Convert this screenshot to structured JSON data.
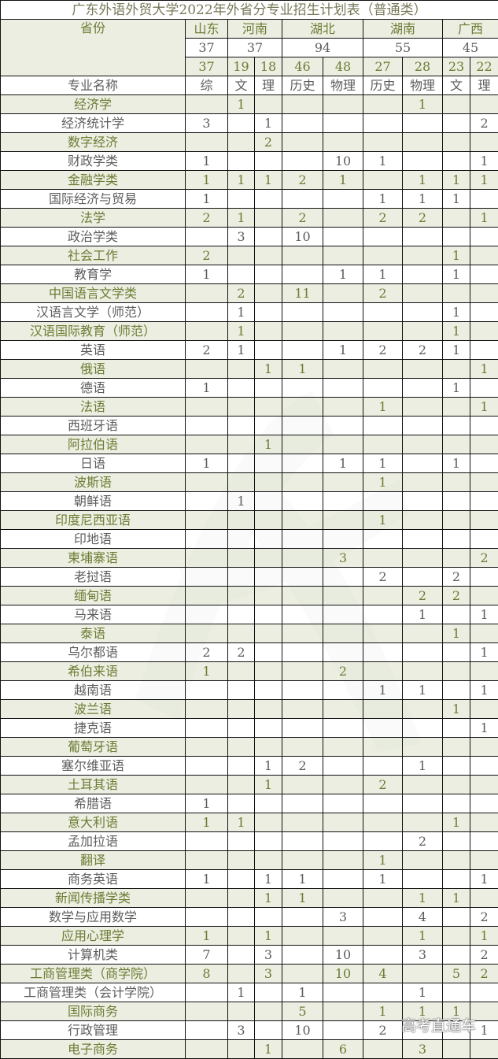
{
  "title": "广东外语外贸大学2022年外省分专业招生计划表（普通类）",
  "header": {
    "province_label": "省份",
    "major_label": "专业名称",
    "provinces": [
      {
        "name": "山东",
        "total": "37",
        "span": 1
      },
      {
        "name": "河南",
        "total": "37",
        "span": 2
      },
      {
        "name": "湖北",
        "total": "94",
        "span": 2
      },
      {
        "name": "湖南",
        "total": "55",
        "span": 2
      },
      {
        "name": "广西",
        "total": "45",
        "span": 2
      }
    ],
    "sub_counts": [
      "37",
      "19",
      "18",
      "46",
      "48",
      "27",
      "28",
      "23",
      "22"
    ],
    "sub_types": [
      "综",
      "文",
      "理",
      "历史",
      "物理",
      "历史",
      "物理",
      "文",
      "理"
    ]
  },
  "rows": [
    {
      "name": "经济学",
      "v": [
        "",
        "1",
        "",
        "",
        "",
        "",
        "1",
        "",
        ""
      ]
    },
    {
      "name": "经济统计学",
      "v": [
        "3",
        "",
        "1",
        "",
        "",
        "",
        "",
        "",
        "2"
      ]
    },
    {
      "name": "数字经济",
      "v": [
        "",
        "",
        "2",
        "",
        "",
        "",
        "",
        "",
        ""
      ]
    },
    {
      "name": "财政学类",
      "v": [
        "1",
        "",
        "",
        "",
        "10",
        "1",
        "",
        "",
        "1"
      ]
    },
    {
      "name": "金融学类",
      "v": [
        "1",
        "1",
        "1",
        "2",
        "1",
        "",
        "1",
        "1",
        "1"
      ]
    },
    {
      "name": "国际经济与贸易",
      "v": [
        "1",
        "",
        "",
        "",
        "",
        "1",
        "1",
        "1",
        ""
      ]
    },
    {
      "name": "法学",
      "v": [
        "2",
        "1",
        "",
        "2",
        "",
        "2",
        "2",
        "",
        "1"
      ]
    },
    {
      "name": "政治学类",
      "v": [
        "",
        "3",
        "",
        "10",
        "",
        "",
        "",
        "",
        ""
      ]
    },
    {
      "name": "社会工作",
      "v": [
        "2",
        "",
        "",
        "",
        "",
        "",
        "",
        "1",
        ""
      ]
    },
    {
      "name": "教育学",
      "v": [
        "1",
        "",
        "",
        "",
        "1",
        "1",
        "",
        "1",
        ""
      ]
    },
    {
      "name": "中国语言文学类",
      "v": [
        "",
        "2",
        "",
        "11",
        "",
        "2",
        "",
        "",
        ""
      ]
    },
    {
      "name": "汉语言文学（师范）",
      "v": [
        "",
        "1",
        "",
        "",
        "",
        "",
        "",
        "1",
        ""
      ]
    },
    {
      "name": "汉语国际教育（师范）",
      "v": [
        "",
        "1",
        "",
        "",
        "",
        "",
        "",
        "1",
        ""
      ]
    },
    {
      "name": "英语",
      "v": [
        "2",
        "1",
        "",
        "",
        "1",
        "2",
        "2",
        "1",
        ""
      ]
    },
    {
      "name": "俄语",
      "v": [
        "",
        "",
        "1",
        "1",
        "",
        "",
        "",
        "",
        "1"
      ]
    },
    {
      "name": "德语",
      "v": [
        "1",
        "",
        "",
        "",
        "",
        "",
        "",
        "1",
        ""
      ]
    },
    {
      "name": "法语",
      "v": [
        "",
        "",
        "",
        "",
        "",
        "1",
        "",
        "",
        "1"
      ]
    },
    {
      "name": "西班牙语",
      "v": [
        "",
        "",
        "",
        "",
        "",
        "",
        "",
        "",
        ""
      ]
    },
    {
      "name": "阿拉伯语",
      "v": [
        "",
        "",
        "1",
        "",
        "",
        "",
        "",
        "",
        ""
      ]
    },
    {
      "name": "日语",
      "v": [
        "1",
        "",
        "",
        "",
        "1",
        "1",
        "",
        "1",
        ""
      ]
    },
    {
      "name": "波斯语",
      "v": [
        "",
        "",
        "",
        "",
        "",
        "1",
        "",
        "",
        ""
      ]
    },
    {
      "name": "朝鲜语",
      "v": [
        "",
        "1",
        "",
        "",
        "",
        "",
        "",
        "",
        ""
      ]
    },
    {
      "name": "印度尼西亚语",
      "v": [
        "",
        "",
        "",
        "",
        "",
        "1",
        "",
        "",
        ""
      ]
    },
    {
      "name": "印地语",
      "v": [
        "",
        "",
        "",
        "",
        "",
        "",
        "",
        "",
        ""
      ]
    },
    {
      "name": "柬埔寨语",
      "v": [
        "",
        "",
        "",
        "",
        "3",
        "",
        "",
        "",
        "2"
      ]
    },
    {
      "name": "老挝语",
      "v": [
        "",
        "",
        "",
        "",
        "",
        "2",
        "",
        "2",
        ""
      ]
    },
    {
      "name": "缅甸语",
      "v": [
        "",
        "",
        "",
        "",
        "",
        "",
        "2",
        "2",
        ""
      ]
    },
    {
      "name": "马来语",
      "v": [
        "",
        "",
        "",
        "",
        "",
        "",
        "1",
        "",
        "1"
      ]
    },
    {
      "name": "泰语",
      "v": [
        "",
        "",
        "",
        "",
        "",
        "",
        "",
        "1",
        ""
      ]
    },
    {
      "name": "乌尔都语",
      "v": [
        "2",
        "2",
        "",
        "",
        "",
        "",
        "",
        "",
        "1"
      ]
    },
    {
      "name": "希伯来语",
      "v": [
        "1",
        "",
        "",
        "",
        "2",
        "",
        "",
        "",
        ""
      ]
    },
    {
      "name": "越南语",
      "v": [
        "",
        "",
        "",
        "",
        "",
        "1",
        "1",
        "",
        "1"
      ]
    },
    {
      "name": "波兰语",
      "v": [
        "",
        "",
        "",
        "",
        "",
        "",
        "",
        "1",
        ""
      ]
    },
    {
      "name": "捷克语",
      "v": [
        "",
        "",
        "",
        "",
        "",
        "",
        "",
        "",
        "1"
      ]
    },
    {
      "name": "葡萄牙语",
      "v": [
        "",
        "",
        "",
        "",
        "",
        "",
        "",
        "",
        ""
      ]
    },
    {
      "name": "塞尔维亚语",
      "v": [
        "",
        "",
        "1",
        "2",
        "",
        "",
        "1",
        "",
        ""
      ]
    },
    {
      "name": "土耳其语",
      "v": [
        "",
        "",
        "1",
        "",
        "",
        "2",
        "",
        "",
        ""
      ]
    },
    {
      "name": "希腊语",
      "v": [
        "1",
        "",
        "",
        "",
        "",
        "",
        "",
        "",
        ""
      ]
    },
    {
      "name": "意大利语",
      "v": [
        "1",
        "1",
        "",
        "",
        "",
        "",
        "",
        "1",
        ""
      ]
    },
    {
      "name": "孟加拉语",
      "v": [
        "",
        "",
        "",
        "",
        "",
        "",
        "2",
        "",
        ""
      ]
    },
    {
      "name": "翻译",
      "v": [
        "",
        "",
        "",
        "",
        "",
        "1",
        "",
        "",
        ""
      ]
    },
    {
      "name": "商务英语",
      "v": [
        "1",
        "",
        "1",
        "1",
        "",
        "1",
        "",
        "",
        "1"
      ]
    },
    {
      "name": "新闻传播学类",
      "v": [
        "",
        "",
        "1",
        "1",
        "",
        "",
        "1",
        "1",
        ""
      ]
    },
    {
      "name": "数学与应用数学",
      "v": [
        "",
        "",
        "",
        "",
        "3",
        "",
        "4",
        "",
        "2"
      ]
    },
    {
      "name": "应用心理学",
      "v": [
        "1",
        "",
        "1",
        "",
        "",
        "",
        "1",
        "",
        "1"
      ]
    },
    {
      "name": "计算机类",
      "v": [
        "7",
        "",
        "3",
        "",
        "10",
        "",
        "3",
        "",
        "2"
      ]
    },
    {
      "name": "工商管理类（商学院）",
      "v": [
        "8",
        "",
        "3",
        "",
        "10",
        "4",
        "",
        "5",
        "2"
      ]
    },
    {
      "name": "工商管理类（会计学院）",
      "v": [
        "",
        "1",
        "",
        "1",
        "",
        "",
        "1",
        "",
        ""
      ]
    },
    {
      "name": "国际商务",
      "v": [
        "",
        "",
        "",
        "5",
        "",
        "1",
        "1",
        "1",
        ""
      ]
    },
    {
      "name": "行政管理",
      "v": [
        "",
        "3",
        "",
        "10",
        "",
        "2",
        "",
        "",
        "1"
      ]
    },
    {
      "name": "电子商务",
      "v": [
        "",
        "",
        "1",
        "",
        "6",
        "",
        "3",
        "",
        ""
      ]
    }
  ],
  "watermark": "高考直通车",
  "colors": {
    "shade_bg": "#e8ebdc",
    "shade_text": "#6d7c34",
    "text": "#5d5d5d",
    "border": "#111111"
  }
}
